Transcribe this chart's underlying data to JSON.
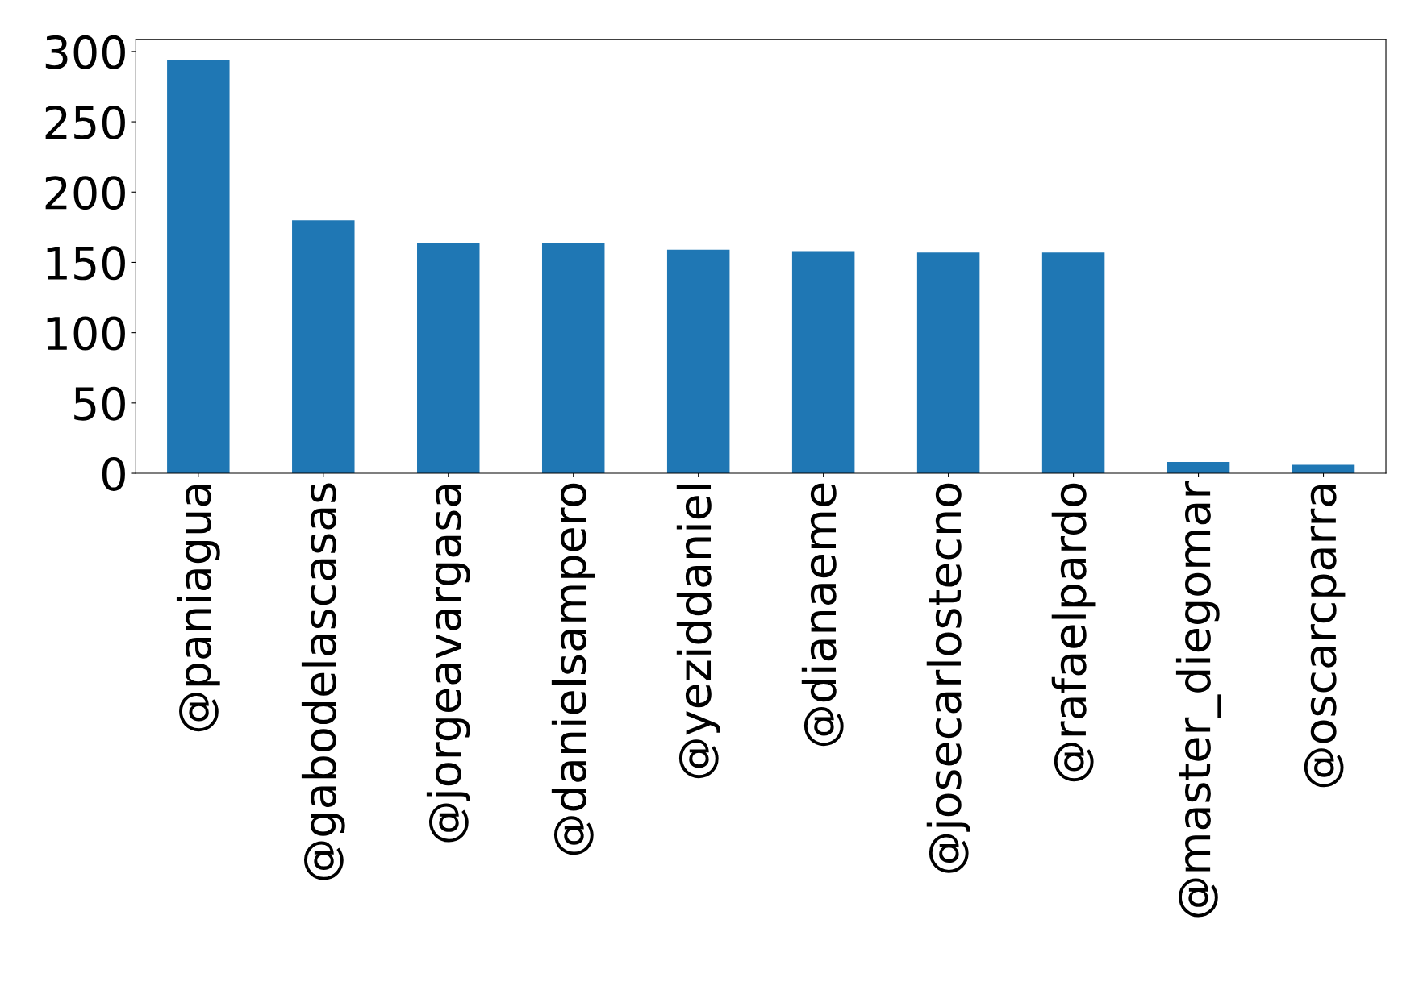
{
  "chart_data": {
    "type": "bar",
    "categories": [
      "@paniagua",
      "@gabodelascasas",
      "@jorgeavargasa",
      "@danielsampero",
      "@yeziddaniel",
      "@dianaeme",
      "@josecarlostecno",
      "@rafaelpardo",
      "@master_diegomar",
      "@oscarcparra"
    ],
    "values": [
      294,
      180,
      164,
      164,
      159,
      158,
      157,
      157,
      8,
      6
    ],
    "color": "#1f77b4",
    "ylim": [
      0,
      308.7
    ],
    "yticks": [
      0,
      50,
      100,
      150,
      200,
      250,
      300
    ],
    "grid": false,
    "legend": false
  }
}
